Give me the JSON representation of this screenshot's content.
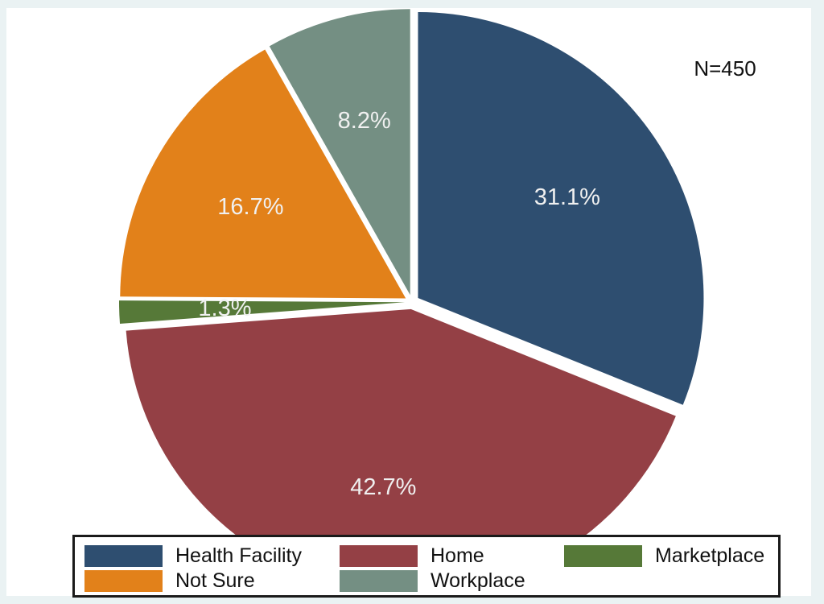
{
  "annotation": {
    "sample_size": "N=450"
  },
  "colors": {
    "frame_background": "#EAF2F3",
    "plot_background": "#FFFFFF",
    "slice_label_text": "#F0F0F0",
    "legend_border": "#1A1A1A"
  },
  "chart_data": {
    "type": "pie",
    "title": "",
    "categories": [
      "Health Facility",
      "Home",
      "Marketplace",
      "Not Sure",
      "Workplace"
    ],
    "values": [
      31.1,
      42.7,
      1.3,
      16.7,
      8.2
    ],
    "labels": [
      "31.1%",
      "42.7%",
      "1.3%",
      "16.7%",
      "8.2%"
    ],
    "colors": [
      "#2E4E70",
      "#944045",
      "#567938",
      "#E2811A",
      "#748F83"
    ],
    "unit": "%",
    "total": 100.0,
    "start_angle_deg": 0,
    "direction": "clockwise",
    "exploded": true,
    "annotation": "N=450",
    "legend_position": "bottom",
    "legend_columns": 3,
    "legend_order": [
      "Health Facility",
      "Home",
      "Marketplace",
      "Not Sure",
      "Workplace"
    ]
  }
}
